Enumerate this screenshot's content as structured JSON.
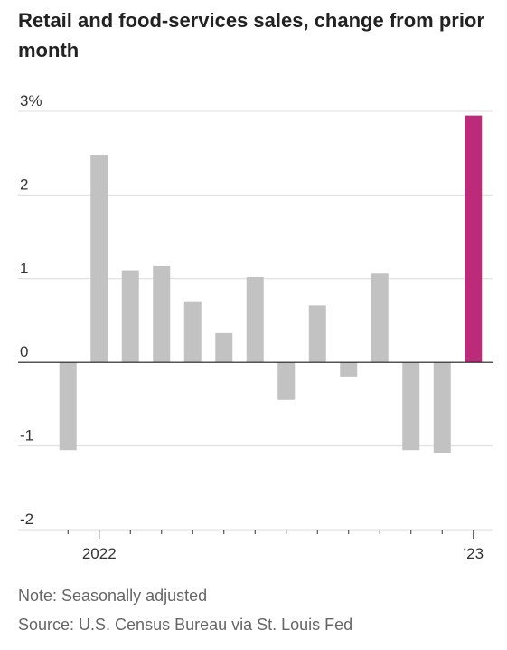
{
  "chart_data": {
    "type": "bar",
    "title": "Retail and food-services sales, change from prior month",
    "categories": [
      null,
      "2022",
      null,
      null,
      null,
      null,
      null,
      null,
      null,
      null,
      null,
      null,
      null,
      "’23"
    ],
    "values": [
      -1.05,
      2.48,
      1.1,
      1.15,
      0.72,
      0.35,
      1.02,
      -0.45,
      0.68,
      -0.17,
      1.06,
      -1.05,
      -1.08,
      2.95
    ],
    "colors": [
      "#c2c2c2",
      "#c2c2c2",
      "#c2c2c2",
      "#c2c2c2",
      "#c2c2c2",
      "#c2c2c2",
      "#c2c2c2",
      "#c2c2c2",
      "#c2c2c2",
      "#c2c2c2",
      "#c2c2c2",
      "#c2c2c2",
      "#c2c2c2",
      "#bc2a7a"
    ],
    "ylim": [
      -2,
      3
    ],
    "yticks": [
      {
        "value": 3,
        "label": "3%"
      },
      2,
      1,
      0,
      -1,
      -2
    ],
    "grid": true,
    "note": "Note: Seasonally adjusted",
    "source": "Source: U.S. Census Bureau via St. Louis Fed"
  }
}
